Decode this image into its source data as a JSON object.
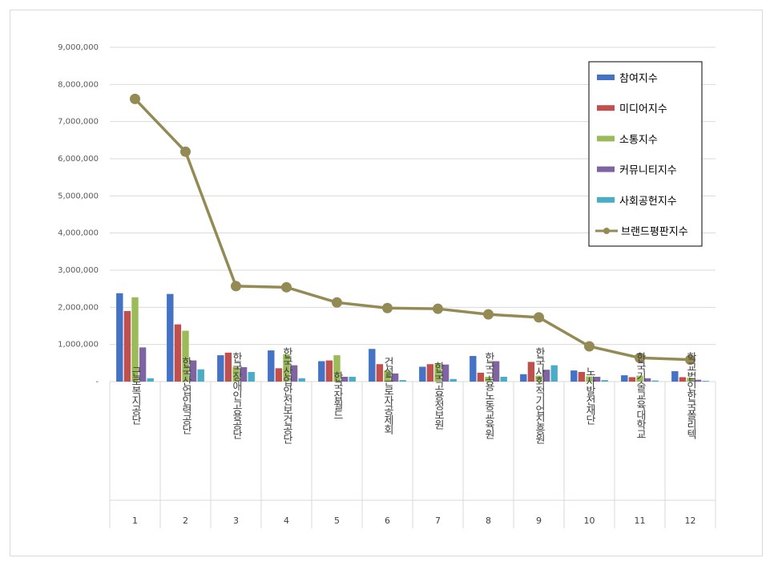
{
  "chart_data": {
    "type": "bar",
    "y_ticks": [
      "-",
      "1,000,000",
      "2,000,000",
      "3,000,000",
      "4,000,000",
      "5,000,000",
      "6,000,000",
      "7,000,000",
      "8,000,000",
      "9,000,000"
    ],
    "ylim": [
      0,
      9000000
    ],
    "grid": true,
    "legend_position": "top-right",
    "index_labels": [
      "1",
      "2",
      "3",
      "4",
      "5",
      "6",
      "7",
      "8",
      "9",
      "10",
      "11",
      "12"
    ],
    "categories": [
      "근로복지공단",
      "한국산업인력공단",
      "한국장애인고용공단",
      "한국산업안전보건공단",
      "한국잡월드",
      "건설근로자공제회",
      "한국고용정보원",
      "한국고용노동교육원",
      "한국사회적기업진흥원",
      "노사발전재단",
      "한국기술교육대학교",
      "학교법인한국폴리텍"
    ],
    "series": [
      {
        "name": "참여지수",
        "type": "bar",
        "color": "#4472c4",
        "values": [
          2380000,
          2360000,
          710000,
          840000,
          550000,
          880000,
          400000,
          690000,
          200000,
          300000,
          170000,
          280000
        ]
      },
      {
        "name": "미디어지수",
        "type": "bar",
        "color": "#c0504d",
        "values": [
          1900000,
          1540000,
          780000,
          360000,
          570000,
          470000,
          470000,
          240000,
          530000,
          260000,
          120000,
          120000
        ]
      },
      {
        "name": "소통지수",
        "type": "bar",
        "color": "#9bbb59",
        "values": [
          2270000,
          1370000,
          390000,
          740000,
          710000,
          300000,
          490000,
          130000,
          160000,
          140000,
          160000,
          100000
        ]
      },
      {
        "name": "커뮤니티지수",
        "type": "bar",
        "color": "#8064a2",
        "values": [
          920000,
          570000,
          390000,
          440000,
          130000,
          220000,
          460000,
          550000,
          320000,
          130000,
          90000,
          50000
        ]
      },
      {
        "name": "사회공헌지수",
        "type": "bar",
        "color": "#4bacc6",
        "values": [
          90000,
          330000,
          260000,
          90000,
          130000,
          40000,
          70000,
          130000,
          440000,
          40000,
          30000,
          20000
        ]
      },
      {
        "name": "브랜드평판지수",
        "type": "line",
        "color": "#948a54",
        "values": [
          7610000,
          6190000,
          2570000,
          2540000,
          2130000,
          1980000,
          1960000,
          1810000,
          1730000,
          950000,
          640000,
          590000
        ]
      }
    ]
  }
}
